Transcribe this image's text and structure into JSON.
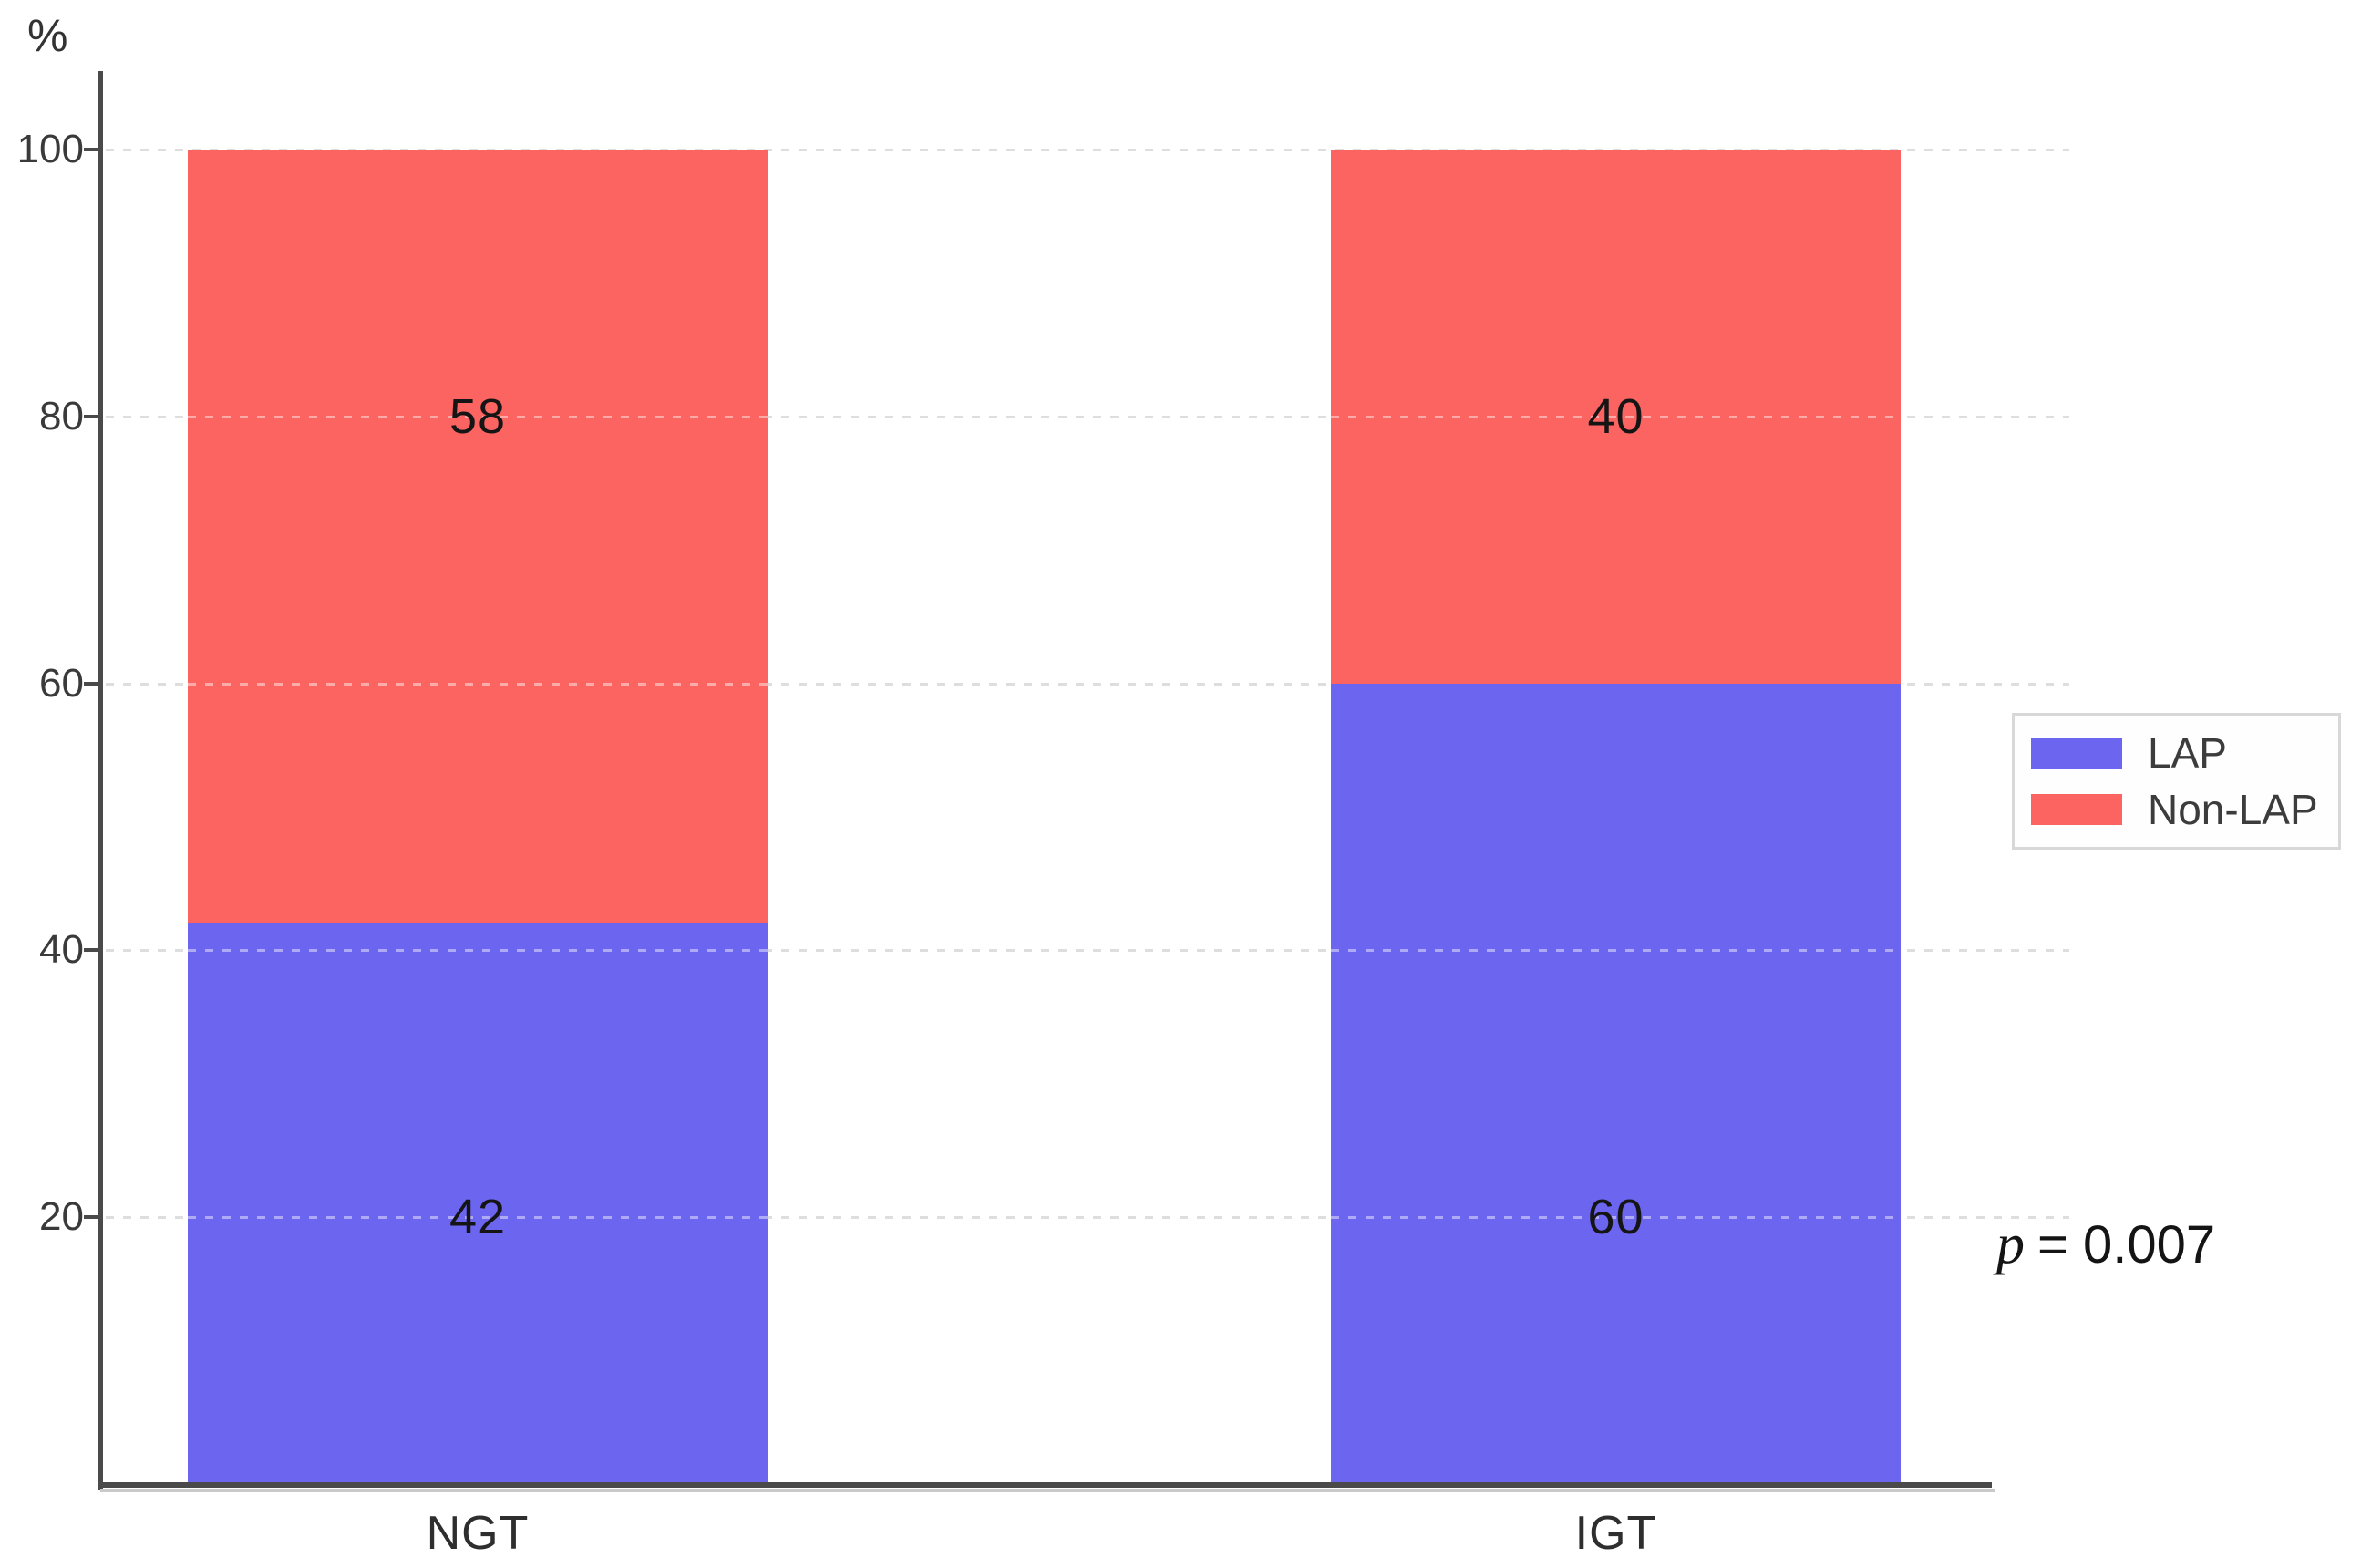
{
  "chart_data": {
    "type": "bar",
    "stacked": true,
    "title": "",
    "ylabel": "%",
    "xlabel": "",
    "ylim": [
      0,
      100
    ],
    "yticks": [
      20,
      40,
      60,
      80,
      100
    ],
    "grid": "horizontal-dotted",
    "categories": [
      "NGT",
      "IGT"
    ],
    "series": [
      {
        "name": "LAP",
        "color": "#6C65EF",
        "values": [
          42,
          60
        ]
      },
      {
        "name": "Non-LAP",
        "color": "#FB6461",
        "values": [
          58,
          40
        ]
      }
    ],
    "value_labels_shown": true,
    "value_label_line_pct": {
      "LAP": 20,
      "Non-LAP": 80
    },
    "legend_position": "right",
    "annotation": "p = 0.007"
  },
  "axis": {
    "unit": "%"
  },
  "legend": {
    "items": [
      {
        "label": "LAP",
        "color": "#6C65EF"
      },
      {
        "label": "Non-LAP",
        "color": "#FB6461"
      }
    ]
  },
  "annotation": {
    "p_symbol": "p",
    "p_rest": "= 0.007"
  }
}
